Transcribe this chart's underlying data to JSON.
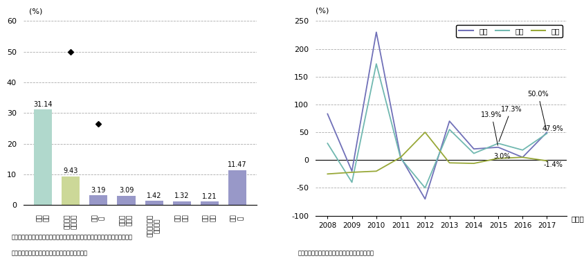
{
  "bar_categories_top": [
    "一般",
    "半導体等",
    "原動",
    "金属加",
    "ポンプ及び遠",
    "荷役",
    "繊維",
    "その"
  ],
  "bar_categories_bot": [
    "機械",
    "製造装置",
    "機",
    "工機械",
    "心分離機",
    "機械",
    "機械",
    "他"
  ],
  "bar_values": [
    31.14,
    9.43,
    3.19,
    3.09,
    1.42,
    1.32,
    1.21,
    11.47
  ],
  "bar_colors": [
    "#b0d8cc",
    "#ccd898",
    "#9898c8",
    "#9898c8",
    "#9898c8",
    "#9898c8",
    "#9898c8",
    "#9898c8"
  ],
  "bar_dot_values": [
    null,
    50.0,
    26.5,
    null,
    null,
    null,
    null,
    null
  ],
  "bar_ylim": [
    0,
    60
  ],
  "bar_yticks": [
    0,
    10,
    20,
    30,
    40,
    50,
    60
  ],
  "bar_ylabel": "(%)",
  "bar_note1": "備考：点は数量の前年比伸び率を表し、表示のないものは数量のデータなし。",
  "bar_note2": "資料：財務省「貴易統計」から経済産業省作成。",
  "line_years": [
    2008,
    2009,
    2010,
    2011,
    2012,
    2013,
    2014,
    2015,
    2016,
    2017
  ],
  "line_quantity": [
    83,
    -20,
    230,
    5,
    -70,
    70,
    20,
    23,
    5,
    50
  ],
  "line_value": [
    30,
    -40,
    173,
    3,
    -50,
    55,
    12,
    30,
    18,
    47.9
  ],
  "line_price": [
    -25,
    -22,
    -20,
    5,
    50,
    -5,
    -6,
    3,
    5,
    -1.4
  ],
  "line_colors": [
    "#7070b8",
    "#70b8b0",
    "#98a838"
  ],
  "line_ylim": [
    -100,
    250
  ],
  "line_yticks": [
    -100,
    -50,
    0,
    50,
    100,
    150,
    200,
    250
  ],
  "line_ylabel": "(%)",
  "line_legend": [
    "数量",
    "金額",
    "価格"
  ],
  "line_note": "資料：財務省「貴易統計」から経済産業省作成。",
  "background_color": "#ffffff"
}
